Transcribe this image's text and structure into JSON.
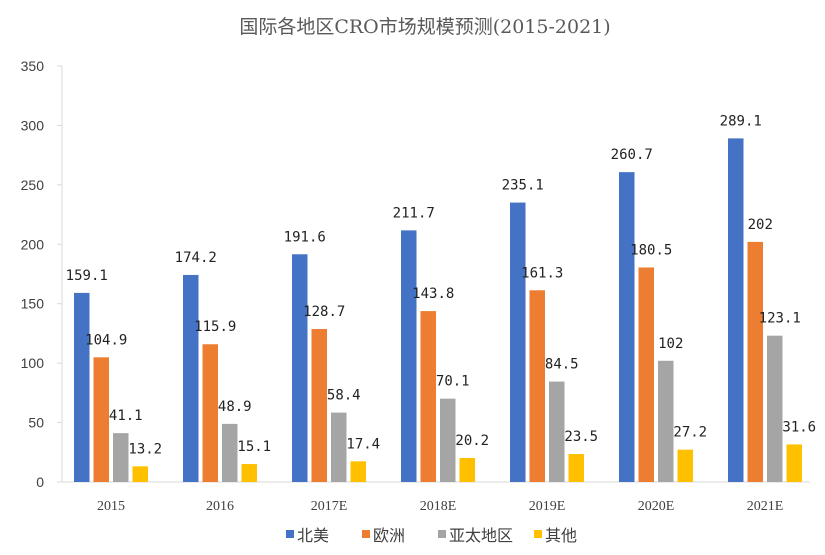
{
  "chart_data": {
    "type": "bar",
    "title": "国际各地区CRO市场规模预测(2015-2021)",
    "categories": [
      "2015",
      "2016",
      "2017E",
      "2018E",
      "2019E",
      "2020E",
      "2021E"
    ],
    "series": [
      {
        "name": "北美",
        "color": "#4472C4",
        "values": [
          159.1,
          174.2,
          191.6,
          211.7,
          235.1,
          260.7,
          289.1
        ]
      },
      {
        "name": "欧洲",
        "color": "#ED7D31",
        "values": [
          104.9,
          115.9,
          128.7,
          143.8,
          161.3,
          180.5,
          202
        ]
      },
      {
        "name": "亚太地区",
        "color": "#A5A5A5",
        "values": [
          41.1,
          48.9,
          58.4,
          70.1,
          84.5,
          102,
          123.1
        ]
      },
      {
        "name": "其他",
        "color": "#FFC000",
        "values": [
          13.2,
          15.1,
          17.4,
          20.2,
          23.5,
          27.2,
          31.6
        ]
      }
    ],
    "ylim": [
      0,
      350
    ],
    "yticks": [
      0,
      50,
      100,
      150,
      200,
      250,
      300,
      350
    ],
    "grid": false,
    "legend_position": "bottom",
    "xlabel": "",
    "ylabel": ""
  }
}
